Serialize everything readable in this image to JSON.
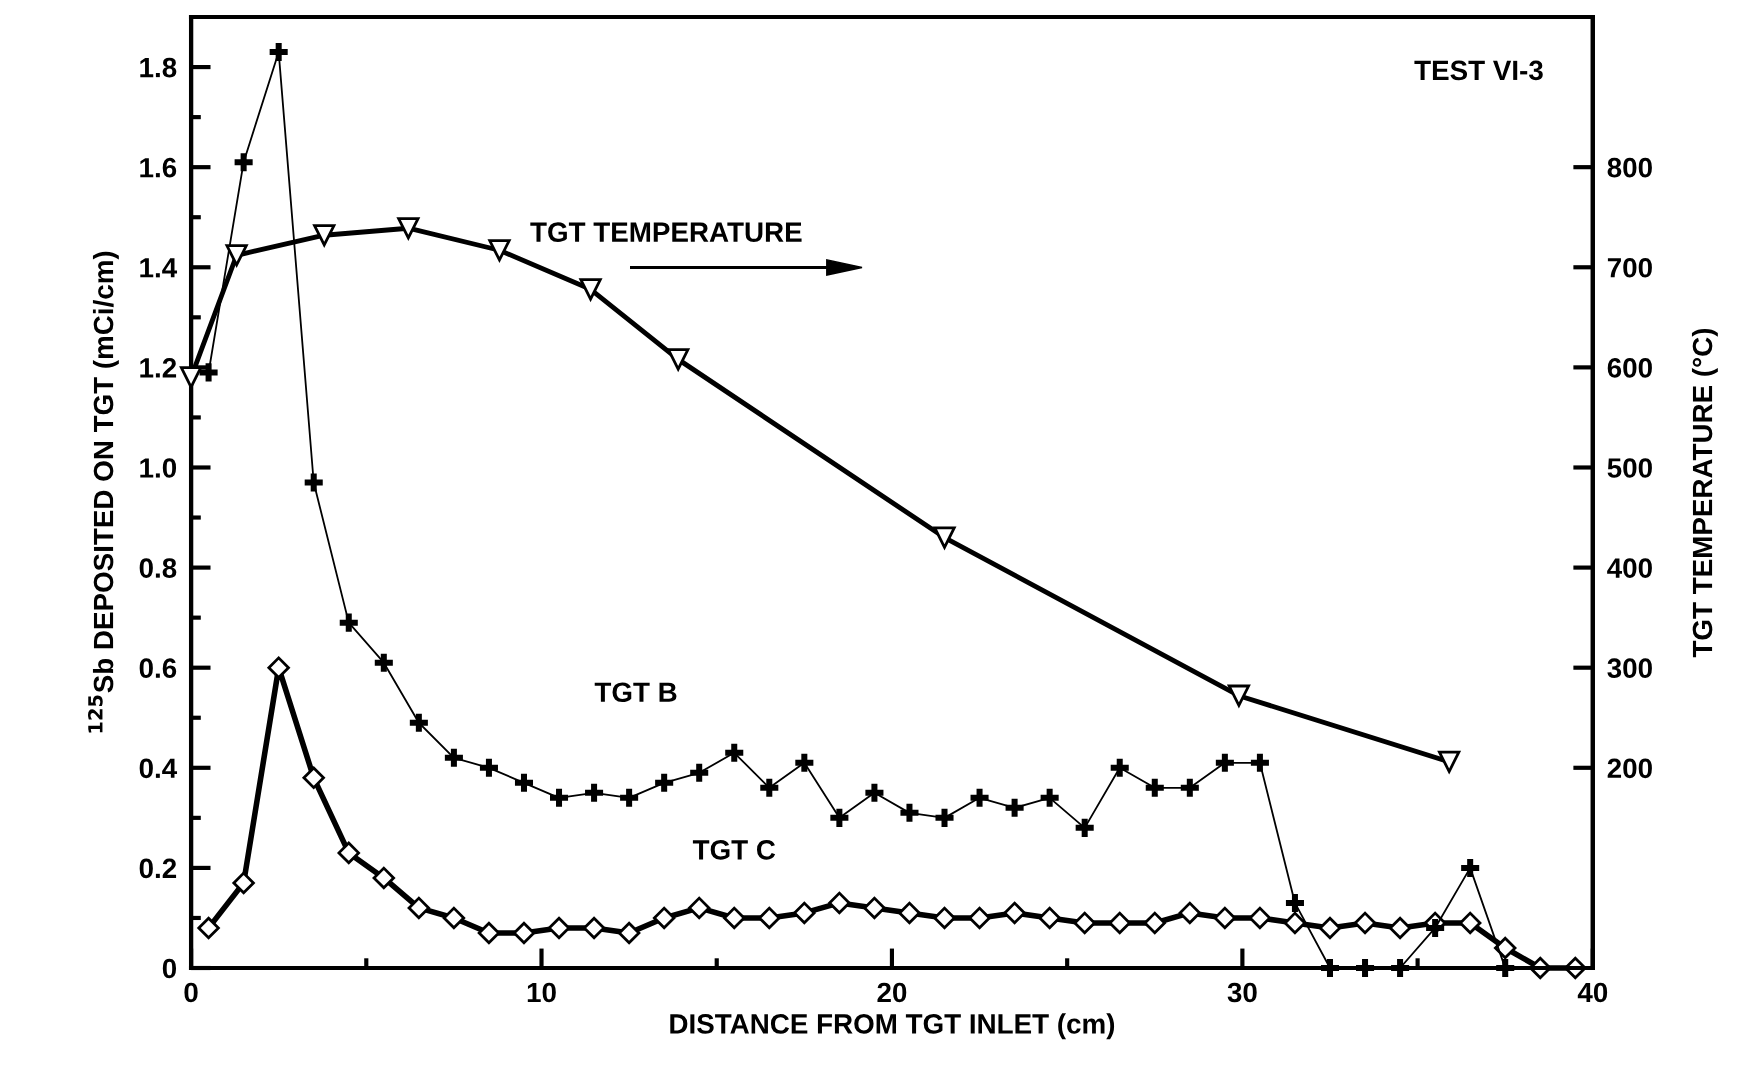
{
  "chart_data": {
    "type": "line",
    "xlabel": "DISTANCE FROM TGT INLET (cm)",
    "ylabel": "$^{125}$Sb DEPOSITED ON TGT (mCi/cm)",
    "y2label": "TGT TEMPERATURE (°C)",
    "annotations": [
      "TEST VI-3"
    ],
    "xlim": [
      0,
      40
    ],
    "xticks": [
      0,
      {
        "value": 5,
        "label": null
      },
      10,
      {
        "value": 15,
        "label": null
      },
      20,
      {
        "value": 25,
        "label": null
      },
      30,
      {
        "value": 35,
        "label": null
      },
      40
    ],
    "ylim": [
      0,
      1.9
    ],
    "yticks": [
      {
        "value": 0,
        "label": "0"
      },
      {
        "value": 0.1,
        "label": null
      },
      {
        "value": 0.2,
        "label": "0.2"
      },
      {
        "value": 0.3,
        "label": null
      },
      {
        "value": 0.4,
        "label": "0.4"
      },
      {
        "value": 0.5,
        "label": null
      },
      {
        "value": 0.6,
        "label": "0.6"
      },
      {
        "value": 0.7,
        "label": null
      },
      {
        "value": 0.8,
        "label": "0.8"
      },
      {
        "value": 0.9,
        "label": null
      },
      {
        "value": 1.0,
        "label": "1.0"
      },
      {
        "value": 1.1,
        "label": null
      },
      {
        "value": 1.2,
        "label": "1.2"
      },
      {
        "value": 1.3,
        "label": null
      },
      {
        "value": 1.4,
        "label": "1.4"
      },
      {
        "value": 1.5,
        "label": null
      },
      {
        "value": 1.6,
        "label": "1.6"
      },
      {
        "value": 1.7,
        "label": null
      },
      {
        "value": 1.8,
        "label": "1.8"
      }
    ],
    "y2lim": [
      0,
      950
    ],
    "y2ticks": [
      200,
      300,
      400,
      500,
      600,
      700,
      800
    ],
    "grid": false,
    "legend": false,
    "line_style": "solid",
    "series": [
      {
        "name": "TGT TEMPERATURE",
        "color": "#000000",
        "axis": "y2",
        "marker": "triangle",
        "x": [
          0,
          1.3,
          3.8,
          6.2,
          8.8,
          11.4,
          13.9,
          21.5,
          29.9,
          35.9
        ],
        "values": [
          590,
          712,
          732,
          739,
          717,
          678,
          608,
          430,
          272,
          206
        ]
      },
      {
        "name": "TGT B",
        "color": "#000000",
        "marker": "cross",
        "x": [
          0.5,
          1.5,
          2.5,
          3.5,
          4.5,
          5.5,
          6.5,
          7.5,
          8.5,
          9.5,
          10.5,
          11.5,
          12.5,
          13.5,
          14.5,
          15.5,
          16.5,
          17.5,
          18.5,
          19.5,
          20.5,
          21.5,
          22.5,
          23.5,
          24.5,
          25.5,
          26.5,
          27.5,
          28.5,
          29.5,
          30.5,
          31.5,
          32.5,
          33.5,
          34.5,
          35.5,
          36.5,
          37.5
        ],
        "values": [
          1.19,
          1.61,
          1.83,
          0.97,
          0.69,
          0.61,
          0.49,
          0.42,
          0.4,
          0.37,
          0.34,
          0.35,
          0.34,
          0.37,
          0.39,
          0.43,
          0.36,
          0.41,
          0.3,
          0.35,
          0.31,
          0.3,
          0.34,
          0.32,
          0.34,
          0.28,
          0.4,
          0.36,
          0.36,
          0.41,
          0.41,
          0.13,
          0,
          0,
          0,
          0.08,
          0.2,
          0
        ]
      },
      {
        "name": "TGT C",
        "color": "#000000",
        "marker": "diamond",
        "x": [
          0.5,
          1.5,
          2.5,
          3.5,
          4.5,
          5.5,
          6.5,
          7.5,
          8.5,
          9.5,
          10.5,
          11.5,
          12.5,
          13.5,
          14.5,
          15.5,
          16.5,
          17.5,
          18.5,
          19.5,
          20.5,
          21.5,
          22.5,
          23.5,
          24.5,
          25.5,
          26.5,
          27.5,
          28.5,
          29.5,
          30.5,
          31.5,
          32.5,
          33.5,
          34.5,
          35.5,
          36.5,
          37.5,
          38.5,
          39.5
        ],
        "values": [
          0.08,
          0.17,
          0.6,
          0.38,
          0.23,
          0.18,
          0.12,
          0.1,
          0.07,
          0.07,
          0.08,
          0.08,
          0.07,
          0.1,
          0.12,
          0.1,
          0.1,
          0.11,
          0.13,
          0.12,
          0.11,
          0.1,
          0.1,
          0.11,
          0.1,
          0.09,
          0.09,
          0.09,
          0.11,
          0.1,
          0.1,
          0.09,
          0.08,
          0.09,
          0.08,
          0.09,
          0.09,
          0.04,
          0,
          0
        ]
      }
    ]
  }
}
